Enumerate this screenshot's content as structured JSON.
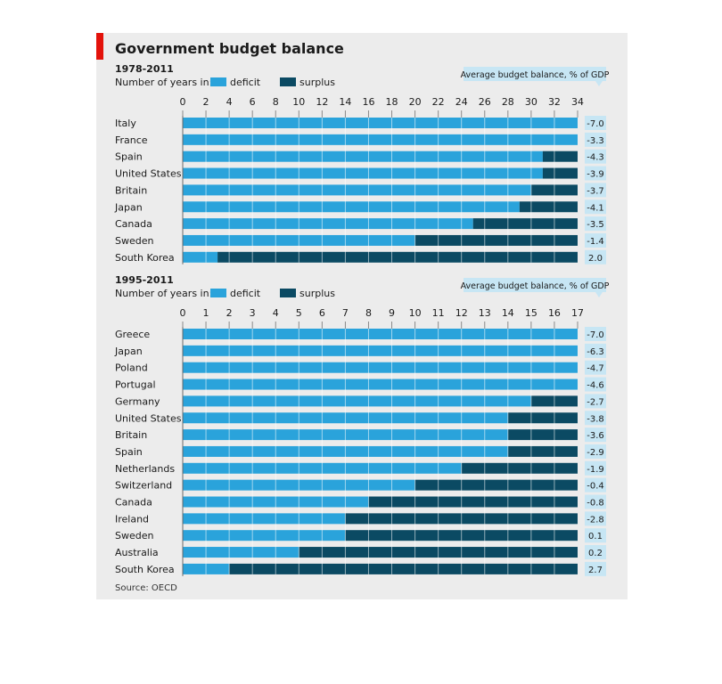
{
  "title": "Government budget balance",
  "source": "Source: OECD",
  "colors": {
    "deficit": "#2aa3db",
    "surplus": "#0b4a63",
    "label_box": "#c7e6f4",
    "grid": "#ffffff"
  },
  "chart_data": [
    {
      "type": "bar",
      "orientation": "horizontal",
      "stacked": true,
      "period": "1978-2011",
      "subtitle": "Number of years in:",
      "legend": [
        "deficit",
        "surplus"
      ],
      "value_label_header": "Average budget balance, % of GDP",
      "xlim": [
        0,
        34
      ],
      "xticks": [
        0,
        2,
        4,
        6,
        8,
        10,
        12,
        14,
        16,
        18,
        20,
        22,
        24,
        26,
        28,
        30,
        32,
        34
      ],
      "categories": [
        "Italy",
        "France",
        "Spain",
        "United States",
        "Britain",
        "Japan",
        "Canada",
        "Sweden",
        "South Korea"
      ],
      "series": [
        {
          "name": "deficit",
          "values": [
            34,
            34,
            31,
            31,
            30,
            29,
            25,
            20,
            3
          ]
        },
        {
          "name": "surplus",
          "values": [
            0,
            0,
            3,
            3,
            4,
            5,
            9,
            14,
            31
          ]
        }
      ],
      "labels": [
        "-7.0",
        "-3.3",
        "-4.3",
        "-3.9",
        "-3.7",
        "-4.1",
        "-3.5",
        "-1.4",
        "2.0"
      ]
    },
    {
      "type": "bar",
      "orientation": "horizontal",
      "stacked": true,
      "period": "1995-2011",
      "subtitle": "Number of years in:",
      "legend": [
        "deficit",
        "surplus"
      ],
      "value_label_header": "Average budget balance, % of GDP",
      "xlim": [
        0,
        17
      ],
      "xticks": [
        0,
        1,
        2,
        3,
        4,
        5,
        6,
        7,
        8,
        9,
        10,
        11,
        12,
        13,
        14,
        15,
        16,
        17
      ],
      "categories": [
        "Greece",
        "Japan",
        "Poland",
        "Portugal",
        "Germany",
        "United States",
        "Britain",
        "Spain",
        "Netherlands",
        "Switzerland",
        "Canada",
        "Ireland",
        "Sweden",
        "Australia",
        "South Korea"
      ],
      "series": [
        {
          "name": "deficit",
          "values": [
            17,
            17,
            17,
            17,
            15,
            14,
            14,
            14,
            12,
            10,
            8,
            7,
            7,
            5,
            2
          ]
        },
        {
          "name": "surplus",
          "values": [
            0,
            0,
            0,
            0,
            2,
            3,
            3,
            3,
            5,
            7,
            9,
            10,
            10,
            12,
            15
          ]
        }
      ],
      "labels": [
        "-7.0",
        "-6.3",
        "-4.7",
        "-4.6",
        "-2.7",
        "-3.8",
        "-3.6",
        "-2.9",
        "-1.9",
        "-0.4",
        "-0.8",
        "-2.8",
        "0.1",
        "0.2",
        "2.7"
      ]
    }
  ]
}
